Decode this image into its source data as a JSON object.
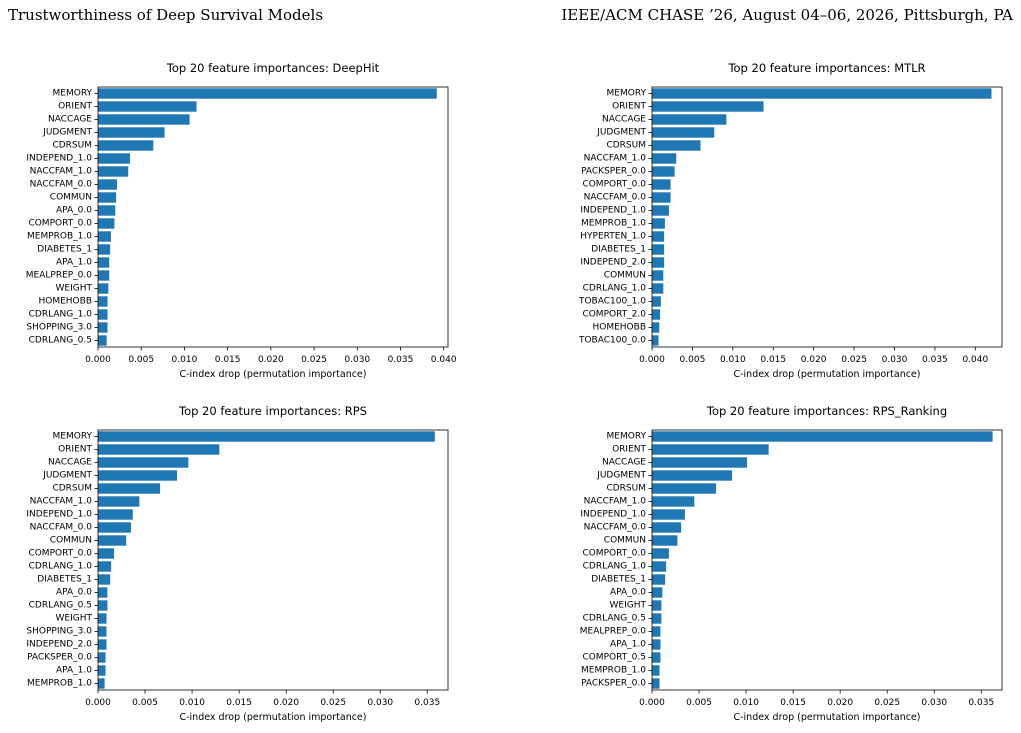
{
  "header": {
    "left": "Trustworthiness of Deep Survival Models",
    "right": "IEEE/ACM CHASE ’26, August 04–06, 2026, Pittsburgh, PA"
  },
  "colors": {
    "bar": "#1f77b4"
  },
  "chart_data": [
    {
      "type": "bar",
      "orientation": "horizontal",
      "title": "Top 20 feature importances: DeepHit",
      "xlabel": "C-index drop (permutation importance)",
      "xlim": [
        0,
        0.0405
      ],
      "xticks": [
        "0.000",
        "0.005",
        "0.010",
        "0.015",
        "0.020",
        "0.025",
        "0.030",
        "0.035",
        "0.040"
      ],
      "categories": [
        "MEMORY",
        "ORIENT",
        "NACCAGE",
        "JUDGMENT",
        "CDRSUM",
        "INDEPEND_1.0",
        "NACCFAM_1.0",
        "NACCFAM_0.0",
        "COMMUN",
        "APA_0.0",
        "COMPORT_0.0",
        "MEMPROB_1.0",
        "DIABETES_1",
        "APA_1.0",
        "MEALPREP_0.0",
        "WEIGHT",
        "HOMEHOBB",
        "CDRLANG_1.0",
        "SHOPPING_3.0",
        "CDRLANG_0.5"
      ],
      "values": [
        0.0392,
        0.0114,
        0.0106,
        0.0077,
        0.0064,
        0.0037,
        0.0035,
        0.0022,
        0.0021,
        0.002,
        0.0019,
        0.0015,
        0.0014,
        0.0013,
        0.0013,
        0.0012,
        0.0011,
        0.0011,
        0.0011,
        0.001
      ]
    },
    {
      "type": "bar",
      "orientation": "horizontal",
      "title": "Top 20 feature importances: MTLR",
      "xlabel": "C-index drop (permutation importance)",
      "xlim": [
        0,
        0.0433
      ],
      "xticks": [
        "0.000",
        "0.005",
        "0.010",
        "0.015",
        "0.020",
        "0.025",
        "0.030",
        "0.035",
        "0.040"
      ],
      "categories": [
        "MEMORY",
        "ORIENT",
        "NACCAGE",
        "JUDGMENT",
        "CDRSUM",
        "NACCFAM_1.0",
        "PACKSPER_0.0",
        "COMPORT_0.0",
        "NACCFAM_0.0",
        "INDEPEND_1.0",
        "MEMPROB_1.0",
        "HYPERTEN_1.0",
        "DIABETES_1",
        "INDEPEND_2.0",
        "COMMUN",
        "CDRLANG_1.0",
        "TOBAC100_1.0",
        "COMPORT_2.0",
        "HOMEHOBB",
        "TOBAC100_0.0"
      ],
      "values": [
        0.042,
        0.0138,
        0.0092,
        0.0077,
        0.006,
        0.003,
        0.0028,
        0.0023,
        0.0023,
        0.0021,
        0.0016,
        0.0015,
        0.0015,
        0.0015,
        0.0014,
        0.0014,
        0.0011,
        0.001,
        0.0009,
        0.0008
      ]
    },
    {
      "type": "bar",
      "orientation": "horizontal",
      "title": "Top 20 feature importances: RPS",
      "xlabel": "C-index drop (permutation importance)",
      "xlim": [
        0,
        0.0372
      ],
      "xticks": [
        "0.000",
        "0.005",
        "0.010",
        "0.015",
        "0.020",
        "0.025",
        "0.030",
        "0.035"
      ],
      "categories": [
        "MEMORY",
        "ORIENT",
        "NACCAGE",
        "JUDGMENT",
        "CDRSUM",
        "NACCFAM_1.0",
        "INDEPEND_1.0",
        "NACCFAM_0.0",
        "COMMUN",
        "COMPORT_0.0",
        "CDRLANG_1.0",
        "DIABETES_1",
        "APA_0.0",
        "CDRLANG_0.5",
        "WEIGHT",
        "SHOPPING_3.0",
        "INDEPEND_2.0",
        "PACKSPER_0.0",
        "APA_1.0",
        "MEMPROB_1.0"
      ],
      "values": [
        0.0358,
        0.0129,
        0.0096,
        0.0084,
        0.0066,
        0.0044,
        0.0037,
        0.0035,
        0.003,
        0.0017,
        0.0014,
        0.0013,
        0.001,
        0.001,
        0.0009,
        0.0009,
        0.0009,
        0.0008,
        0.0008,
        0.0007
      ]
    },
    {
      "type": "bar",
      "orientation": "horizontal",
      "title": "Top 20 feature importances: RPS_Ranking",
      "xlabel": "C-index drop (permutation importance)",
      "xlim": [
        0,
        0.0372
      ],
      "xticks": [
        "0.000",
        "0.005",
        "0.010",
        "0.015",
        "0.020",
        "0.025",
        "0.030",
        "0.035"
      ],
      "categories": [
        "MEMORY",
        "ORIENT",
        "NACCAGE",
        "JUDGMENT",
        "CDRSUM",
        "NACCFAM_1.0",
        "INDEPEND_1.0",
        "NACCFAM_0.0",
        "COMMUN",
        "COMPORT_0.0",
        "CDRLANG_1.0",
        "DIABETES_1",
        "APA_0.0",
        "WEIGHT",
        "CDRLANG_0.5",
        "MEALPREP_0.0",
        "APA_1.0",
        "COMPORT_0.5",
        "MEMPROB_1.0",
        "PACKSPER_0.0"
      ],
      "values": [
        0.0362,
        0.0124,
        0.0101,
        0.0085,
        0.0068,
        0.0045,
        0.0035,
        0.0031,
        0.0027,
        0.0018,
        0.0015,
        0.0014,
        0.0011,
        0.001,
        0.001,
        0.0009,
        0.0009,
        0.0009,
        0.0008,
        0.0008
      ]
    }
  ]
}
